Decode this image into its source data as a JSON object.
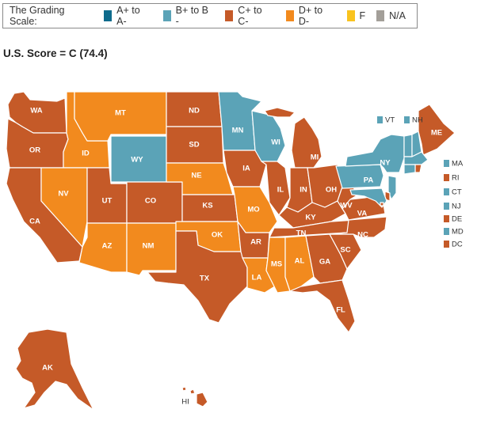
{
  "legend": {
    "title": "The Grading Scale:",
    "items": [
      {
        "label": "A+ to A-",
        "color": "#0e6b8c"
      },
      {
        "label": "B+ to B -",
        "color": "#5ba3b7"
      },
      {
        "label": "C+ to C-",
        "color": "#c55a28"
      },
      {
        "label": "D+ to D-",
        "color": "#f28a1e"
      },
      {
        "label": "F",
        "color": "#f9c31f"
      },
      {
        "label": "N/A",
        "color": "#a39f99"
      }
    ]
  },
  "score_label": "U.S. Score = C (74.4)",
  "grade_colors": {
    "B": "#5ba3b7",
    "C": "#c55a28",
    "D": "#f28a1e"
  },
  "states": [
    {
      "abbr": "WA",
      "grade": "C"
    },
    {
      "abbr": "OR",
      "grade": "C"
    },
    {
      "abbr": "CA",
      "grade": "C"
    },
    {
      "abbr": "ID",
      "grade": "D"
    },
    {
      "abbr": "NV",
      "grade": "D"
    },
    {
      "abbr": "MT",
      "grade": "D"
    },
    {
      "abbr": "WY",
      "grade": "B"
    },
    {
      "abbr": "UT",
      "grade": "C"
    },
    {
      "abbr": "AZ",
      "grade": "D"
    },
    {
      "abbr": "CO",
      "grade": "C"
    },
    {
      "abbr": "NM",
      "grade": "D"
    },
    {
      "abbr": "ND",
      "grade": "C"
    },
    {
      "abbr": "SD",
      "grade": "C"
    },
    {
      "abbr": "NE",
      "grade": "D"
    },
    {
      "abbr": "KS",
      "grade": "C"
    },
    {
      "abbr": "OK",
      "grade": "D"
    },
    {
      "abbr": "TX",
      "grade": "C"
    },
    {
      "abbr": "MN",
      "grade": "B"
    },
    {
      "abbr": "IA",
      "grade": "C"
    },
    {
      "abbr": "MO",
      "grade": "D"
    },
    {
      "abbr": "AR",
      "grade": "C"
    },
    {
      "abbr": "LA",
      "grade": "D"
    },
    {
      "abbr": "WI",
      "grade": "B"
    },
    {
      "abbr": "IL",
      "grade": "C"
    },
    {
      "abbr": "MI",
      "grade": "C"
    },
    {
      "abbr": "IN",
      "grade": "C"
    },
    {
      "abbr": "OH",
      "grade": "C"
    },
    {
      "abbr": "KY",
      "grade": "C"
    },
    {
      "abbr": "TN",
      "grade": "C"
    },
    {
      "abbr": "MS",
      "grade": "D"
    },
    {
      "abbr": "AL",
      "grade": "D"
    },
    {
      "abbr": "GA",
      "grade": "C"
    },
    {
      "abbr": "FL",
      "grade": "C"
    },
    {
      "abbr": "SC",
      "grade": "C"
    },
    {
      "abbr": "NC",
      "grade": "C"
    },
    {
      "abbr": "VA",
      "grade": "C"
    },
    {
      "abbr": "WV",
      "grade": "C"
    },
    {
      "abbr": "PA",
      "grade": "B"
    },
    {
      "abbr": "NY",
      "grade": "B"
    },
    {
      "abbr": "ME",
      "grade": "C"
    },
    {
      "abbr": "AK",
      "grade": "C"
    },
    {
      "abbr": "HI",
      "grade": "C"
    }
  ],
  "northeast_top": [
    {
      "abbr": "VT",
      "grade": "B"
    },
    {
      "abbr": "NH",
      "grade": "B"
    }
  ],
  "northeast_side": [
    {
      "abbr": "MA",
      "grade": "B"
    },
    {
      "abbr": "RI",
      "grade": "C"
    },
    {
      "abbr": "CT",
      "grade": "B"
    },
    {
      "abbr": "NJ",
      "grade": "B"
    },
    {
      "abbr": "DE",
      "grade": "C"
    },
    {
      "abbr": "MD",
      "grade": "B"
    },
    {
      "abbr": "DC",
      "grade": "C"
    }
  ]
}
